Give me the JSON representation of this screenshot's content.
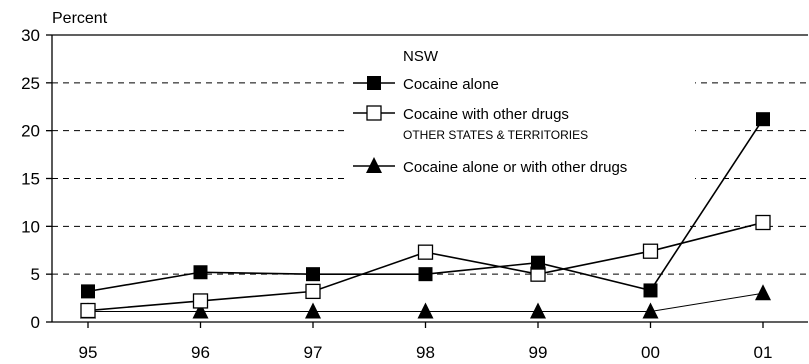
{
  "chart_data": {
    "type": "line",
    "ylabel": "Percent",
    "xlabel": "",
    "ylim": [
      0,
      30
    ],
    "yticks": [
      0,
      5,
      10,
      15,
      20,
      25,
      30
    ],
    "categories": [
      "95",
      "96",
      "97",
      "98",
      "99",
      "00",
      "01"
    ],
    "grid": "dashed horizontal",
    "legend": {
      "placement": "top-center",
      "group_titles": [
        "NSW",
        "OTHER STATES & TERRITORIES"
      ]
    },
    "series": [
      {
        "name": "Cocaine alone",
        "group": "NSW",
        "marker": "filled-square",
        "values": [
          3.2,
          5.2,
          5.0,
          5.0,
          6.2,
          3.3,
          21.2
        ]
      },
      {
        "name": "Cocaine with other drugs",
        "group": "NSW",
        "marker": "open-square",
        "values": [
          1.2,
          2.2,
          3.2,
          7.3,
          5.0,
          7.4,
          10.4
        ]
      },
      {
        "name": "Cocaine alone or with other drugs",
        "group": "OTHER STATES & TERRITORIES",
        "marker": "filled-triangle",
        "values": [
          1.1,
          1.1,
          1.1,
          1.1,
          1.1,
          1.1,
          3.0
        ]
      }
    ]
  }
}
